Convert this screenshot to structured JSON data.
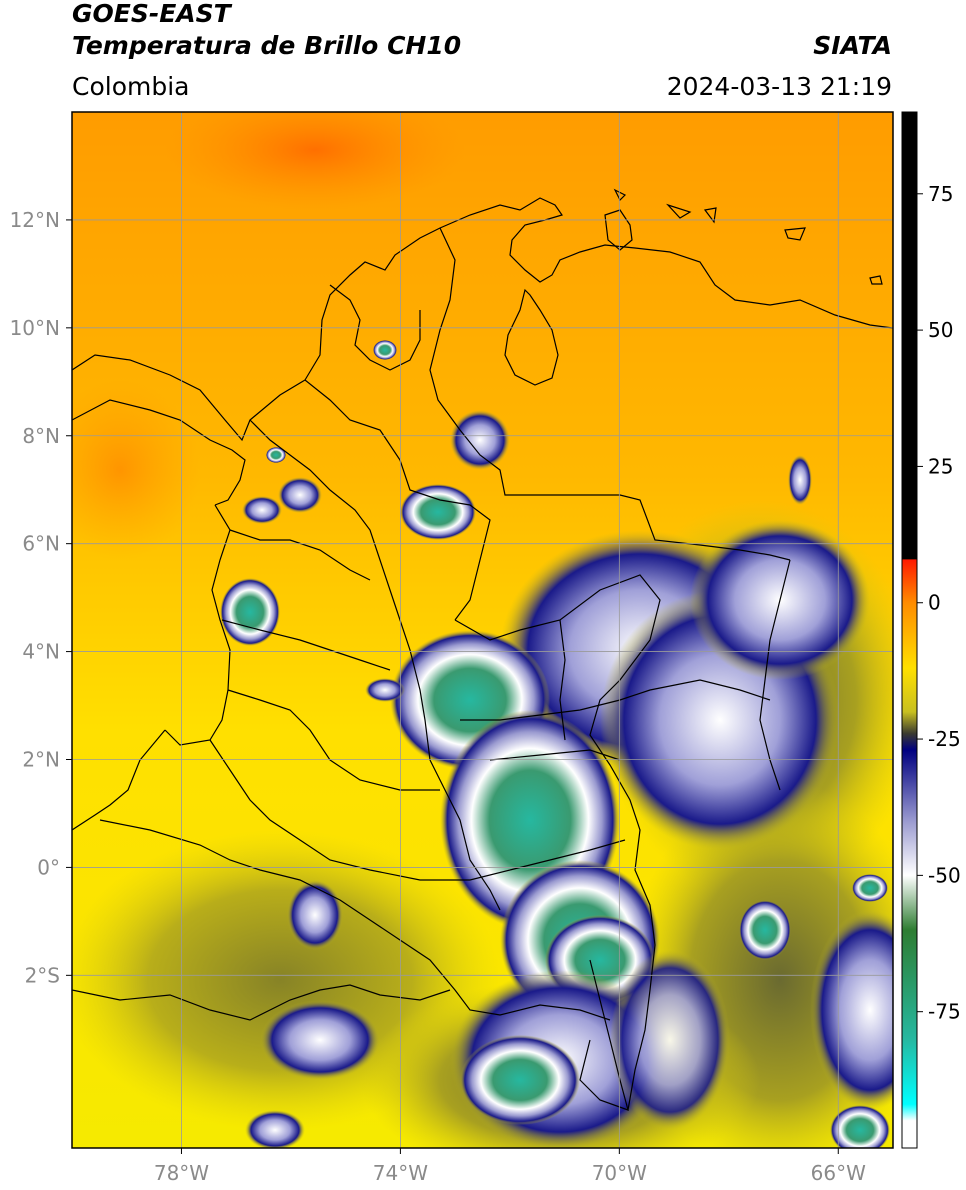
{
  "header": {
    "title_line1": "GOES-EAST",
    "title_line2": "Temperatura de Brillo CH10",
    "brand": "SIATA",
    "region": "Colombia",
    "datetime": "2024-03-13 21:19"
  },
  "map": {
    "lon_range": [
      -80,
      -65
    ],
    "lat_range": [
      -5.2,
      14
    ],
    "lon_ticks": [
      {
        "value": -78,
        "label": "78°W"
      },
      {
        "value": -74,
        "label": "74°W"
      },
      {
        "value": -70,
        "label": "70°W"
      },
      {
        "value": -66,
        "label": "66°W"
      }
    ],
    "lat_ticks": [
      {
        "value": 12,
        "label": "12°N"
      },
      {
        "value": 10,
        "label": "10°N"
      },
      {
        "value": 8,
        "label": "8°N"
      },
      {
        "value": 6,
        "label": "6°N"
      },
      {
        "value": 4,
        "label": "4°N"
      },
      {
        "value": 2,
        "label": "2°N"
      },
      {
        "value": 0,
        "label": "0°"
      },
      {
        "value": -2,
        "label": "2°S"
      }
    ],
    "grid": true
  },
  "colorbar": {
    "range": [
      -100,
      90
    ],
    "ticks": [
      {
        "value": 75,
        "label": "75"
      },
      {
        "value": 50,
        "label": "50"
      },
      {
        "value": 25,
        "label": "25"
      },
      {
        "value": 0,
        "label": "0"
      },
      {
        "value": -25,
        "label": "-25"
      },
      {
        "value": -50,
        "label": "-50"
      },
      {
        "value": -75,
        "label": "-75"
      }
    ],
    "stops": [
      {
        "value": 90,
        "color": "#000000"
      },
      {
        "value": 8,
        "color": "#000000"
      },
      {
        "value": 7.9,
        "color": "#ff1a00"
      },
      {
        "value": 0,
        "color": "#ff8c00"
      },
      {
        "value": -12,
        "color": "#ffe000"
      },
      {
        "value": -20,
        "color": "#c8c020"
      },
      {
        "value": -24,
        "color": "#3a3a30"
      },
      {
        "value": -27,
        "color": "#000080"
      },
      {
        "value": -40,
        "color": "#9a9ad0"
      },
      {
        "value": -50,
        "color": "#ffffff"
      },
      {
        "value": -60,
        "color": "#2e7d32"
      },
      {
        "value": -80,
        "color": "#26b8a0"
      },
      {
        "value": -92,
        "color": "#00ffff"
      },
      {
        "value": -95,
        "color": "#ffffff"
      },
      {
        "value": -100,
        "color": "#ffffff"
      }
    ]
  }
}
